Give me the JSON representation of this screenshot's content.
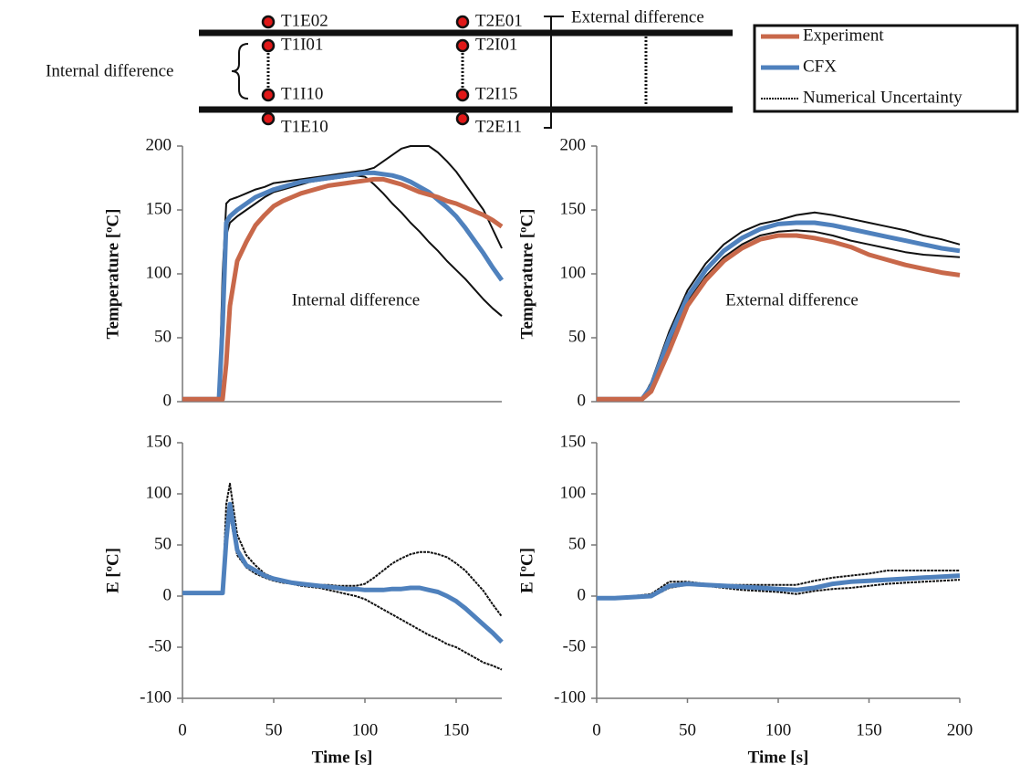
{
  "diagram": {
    "labels": [
      "T1E02",
      "T1I01",
      "T1I10",
      "T1E10",
      "T2E01",
      "T2I01",
      "T2I15",
      "T2E11"
    ],
    "internal": "Internal difference",
    "external": "External difference"
  },
  "chart_data": [
    {
      "type": "line",
      "annotation": "Internal difference",
      "ylabel": "Temperature [ºC]",
      "x": [
        0,
        5,
        10,
        15,
        20,
        22,
        24,
        26,
        30,
        35,
        40,
        45,
        50,
        55,
        60,
        65,
        70,
        75,
        80,
        85,
        90,
        95,
        100,
        105,
        110,
        115,
        120,
        125,
        130,
        135,
        140,
        145,
        150,
        155,
        160,
        165,
        170,
        175
      ],
      "xlim": [
        0,
        175
      ],
      "xticks": [
        0,
        50,
        100,
        150
      ],
      "ylim": [
        0,
        200
      ],
      "yticks": [
        0,
        50,
        100,
        150,
        200
      ],
      "series": [
        {
          "name": "Experiment",
          "color": "#c8684a",
          "values": [
            2,
            2,
            2,
            2,
            2,
            2,
            30,
            75,
            110,
            125,
            138,
            146,
            153,
            157,
            160,
            163,
            165,
            167,
            169,
            170,
            171,
            172,
            173,
            174,
            174,
            172,
            170,
            167,
            164,
            162,
            160,
            157,
            155,
            152,
            149,
            146,
            142,
            137
          ]
        },
        {
          "name": "CFX",
          "color": "#4f81bd",
          "values": [
            2,
            2,
            2,
            2,
            2,
            60,
            140,
            145,
            150,
            155,
            160,
            163,
            166,
            168,
            170,
            172,
            173,
            174,
            175,
            176,
            177,
            178,
            179,
            179,
            178,
            177,
            175,
            172,
            168,
            164,
            158,
            152,
            145,
            136,
            126,
            116,
            105,
            95
          ]
        },
        {
          "name": "Numerical Uncertainty",
          "color": "#111111",
          "values": [
            2,
            2,
            2,
            2,
            2,
            100,
            155,
            158,
            160,
            163,
            166,
            168,
            171,
            172,
            173,
            174,
            175,
            176,
            177,
            178,
            179,
            180,
            181,
            183,
            188,
            193,
            198,
            200,
            200,
            200,
            195,
            188,
            180,
            170,
            160,
            150,
            135,
            120
          ]
        },
        {
          "color": "#111111",
          "values": [
            2,
            2,
            2,
            2,
            2,
            50,
            130,
            140,
            145,
            150,
            155,
            160,
            164,
            166,
            168,
            170,
            172,
            173,
            174,
            175,
            176,
            177,
            176,
            170,
            163,
            155,
            148,
            140,
            133,
            125,
            118,
            110,
            103,
            96,
            88,
            80,
            73,
            67
          ]
        }
      ]
    },
    {
      "type": "line",
      "annotation": "External difference",
      "ylabel": "Temperature [ºC]",
      "x": [
        0,
        10,
        20,
        25,
        30,
        40,
        50,
        60,
        70,
        80,
        90,
        100,
        110,
        120,
        130,
        140,
        150,
        160,
        170,
        180,
        190,
        200
      ],
      "xlim": [
        0,
        200
      ],
      "xticks": [
        0,
        50,
        100,
        150,
        200
      ],
      "ylim": [
        0,
        200
      ],
      "yticks": [
        0,
        50,
        100,
        150,
        200
      ],
      "series": [
        {
          "name": "Experiment",
          "color": "#c8684a",
          "values": [
            2,
            2,
            2,
            2,
            8,
            40,
            75,
            95,
            110,
            120,
            127,
            130,
            130,
            128,
            125,
            121,
            115,
            111,
            107,
            104,
            101,
            99
          ]
        },
        {
          "name": "CFX",
          "color": "#4f81bd",
          "values": [
            2,
            2,
            2,
            2,
            12,
            50,
            82,
            103,
            118,
            128,
            135,
            139,
            140,
            140,
            138,
            135,
            132,
            129,
            126,
            123,
            120,
            118
          ]
        },
        {
          "name": "Numerical Uncertainty",
          "color": "#111111",
          "values": [
            2,
            2,
            2,
            2,
            15,
            55,
            87,
            108,
            123,
            133,
            139,
            142,
            146,
            148,
            146,
            143,
            140,
            137,
            134,
            130,
            127,
            123
          ]
        },
        {
          "color": "#111111",
          "values": [
            2,
            2,
            2,
            2,
            8,
            45,
            78,
            98,
            113,
            123,
            130,
            133,
            134,
            133,
            130,
            126,
            123,
            120,
            117,
            115,
            114,
            113
          ]
        }
      ]
    },
    {
      "type": "line",
      "ylabel": "E [ºC]",
      "xlabel": "Time [s]",
      "x": [
        0,
        5,
        10,
        15,
        20,
        22,
        24,
        26,
        30,
        35,
        40,
        45,
        50,
        55,
        60,
        65,
        70,
        75,
        80,
        85,
        90,
        95,
        100,
        105,
        110,
        115,
        120,
        125,
        130,
        135,
        140,
        145,
        150,
        155,
        160,
        165,
        170,
        175
      ],
      "xlim": [
        0,
        175
      ],
      "xticks": [
        0,
        50,
        100,
        150
      ],
      "ylim": [
        -100,
        150
      ],
      "yticks": [
        -100,
        -50,
        0,
        50,
        100,
        150
      ],
      "series": [
        {
          "name": "CFX",
          "color": "#4f81bd",
          "values": [
            3,
            3,
            3,
            3,
            3,
            3,
            55,
            90,
            45,
            30,
            25,
            20,
            17,
            15,
            13,
            12,
            11,
            10,
            9,
            8,
            7,
            7,
            6,
            6,
            6,
            7,
            7,
            8,
            8,
            6,
            4,
            0,
            -5,
            -12,
            -20,
            -28,
            -36,
            -45
          ]
        },
        {
          "name": "Numerical Uncertainty",
          "color": "#111111",
          "values": [
            3,
            3,
            3,
            3,
            3,
            3,
            90,
            110,
            60,
            40,
            30,
            22,
            18,
            15,
            14,
            13,
            12,
            11,
            11,
            10,
            10,
            10,
            12,
            18,
            25,
            32,
            37,
            41,
            43,
            43,
            41,
            38,
            32,
            25,
            15,
            5,
            -8,
            -20
          ]
        },
        {
          "color": "#111111",
          "values": [
            3,
            3,
            3,
            3,
            3,
            3,
            50,
            80,
            40,
            28,
            22,
            18,
            15,
            13,
            12,
            10,
            9,
            8,
            6,
            4,
            2,
            0,
            -3,
            -8,
            -13,
            -18,
            -23,
            -28,
            -33,
            -38,
            -42,
            -47,
            -50,
            -55,
            -60,
            -65,
            -68,
            -72
          ]
        }
      ]
    },
    {
      "type": "line",
      "ylabel": "E [ºC]",
      "xlabel": "Time [s]",
      "x": [
        0,
        10,
        20,
        30,
        40,
        50,
        60,
        70,
        80,
        90,
        100,
        110,
        120,
        130,
        140,
        150,
        160,
        170,
        180,
        190,
        200
      ],
      "xlim": [
        0,
        200
      ],
      "xticks": [
        0,
        50,
        100,
        150,
        200
      ],
      "ylim": [
        -100,
        150
      ],
      "yticks": [
        -100,
        -50,
        0,
        50,
        100,
        150
      ],
      "series": [
        {
          "name": "CFX",
          "color": "#4f81bd",
          "values": [
            -2,
            -2,
            -1,
            0,
            10,
            12,
            11,
            10,
            9,
            8,
            7,
            6,
            8,
            12,
            14,
            15,
            16,
            17,
            18,
            19,
            20
          ]
        },
        {
          "name": "Numerical Uncertainty",
          "color": "#111111",
          "values": [
            -2,
            -1,
            0,
            2,
            14,
            14,
            12,
            11,
            11,
            11,
            11,
            11,
            15,
            18,
            20,
            22,
            25,
            25,
            25,
            25,
            25
          ]
        },
        {
          "color": "#111111",
          "values": [
            -3,
            -3,
            -2,
            -1,
            8,
            11,
            10,
            8,
            6,
            5,
            4,
            2,
            5,
            7,
            8,
            10,
            12,
            13,
            14,
            15,
            16
          ]
        }
      ]
    }
  ]
}
